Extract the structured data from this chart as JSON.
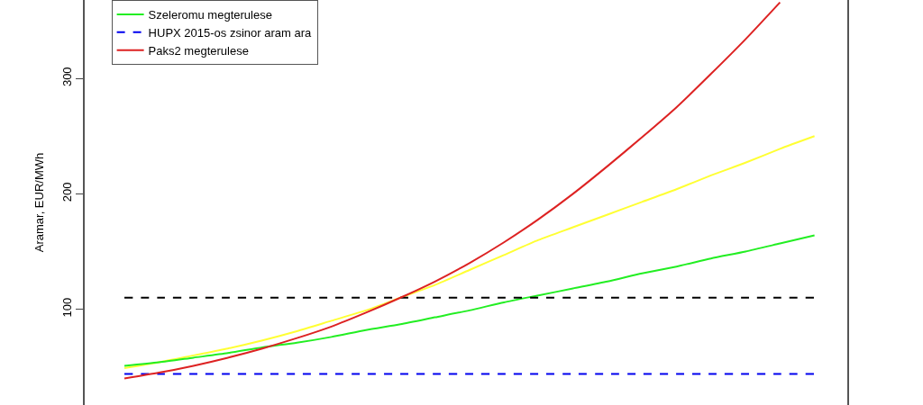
{
  "chart_data": {
    "type": "line",
    "ylabel": "Aramar, EUR/MWh",
    "categories": [
      null,
      null,
      null,
      null,
      null,
      null,
      null,
      null,
      null,
      null,
      null,
      null,
      null,
      null,
      null,
      null,
      null,
      null,
      null,
      null,
      null
    ],
    "series": [
      {
        "color": "#ffff33",
        "values": [
          49,
          54,
          60,
          66,
          73,
          81,
          90,
          99,
          110,
          121,
          134,
          147,
          160,
          171,
          182,
          193,
          204,
          216,
          227,
          239,
          250
        ]
      },
      {
        "name": "Szeleromu megterulese",
        "color": "#22ee22",
        "values": [
          51,
          54,
          58,
          62,
          67,
          71,
          76,
          82,
          87,
          93,
          99,
          106,
          112,
          118,
          124,
          131,
          137,
          144,
          150,
          157,
          164
        ]
      },
      {
        "color": "#000000",
        "line_style": "dashed",
        "values": [
          110,
          110,
          110,
          110,
          110,
          110,
          110,
          110,
          110,
          110,
          110,
          110,
          110,
          110,
          110,
          110,
          110,
          110,
          110,
          110,
          110
        ]
      },
      {
        "name": "HUPX 2015-os zsinor aram ara",
        "color": "#0000ee",
        "line_style": "dashed",
        "values": [
          44,
          44,
          44,
          44,
          44,
          44,
          44,
          44,
          44,
          44,
          44,
          44,
          44,
          44,
          44,
          44,
          44,
          44,
          44,
          44,
          44
        ]
      },
      {
        "name": "Paks2 megterulese",
        "color": "#dd2222",
        "values": [
          40,
          45,
          51,
          58,
          66,
          75,
          85,
          97,
          110,
          124,
          140,
          158,
          178,
          200,
          224,
          249,
          275,
          304,
          334,
          366,
          null
        ]
      }
    ],
    "ylim": [
      17,
      368
    ],
    "yticks": [
      100,
      200,
      300
    ],
    "tick_labels": "y",
    "legend": "top left"
  }
}
